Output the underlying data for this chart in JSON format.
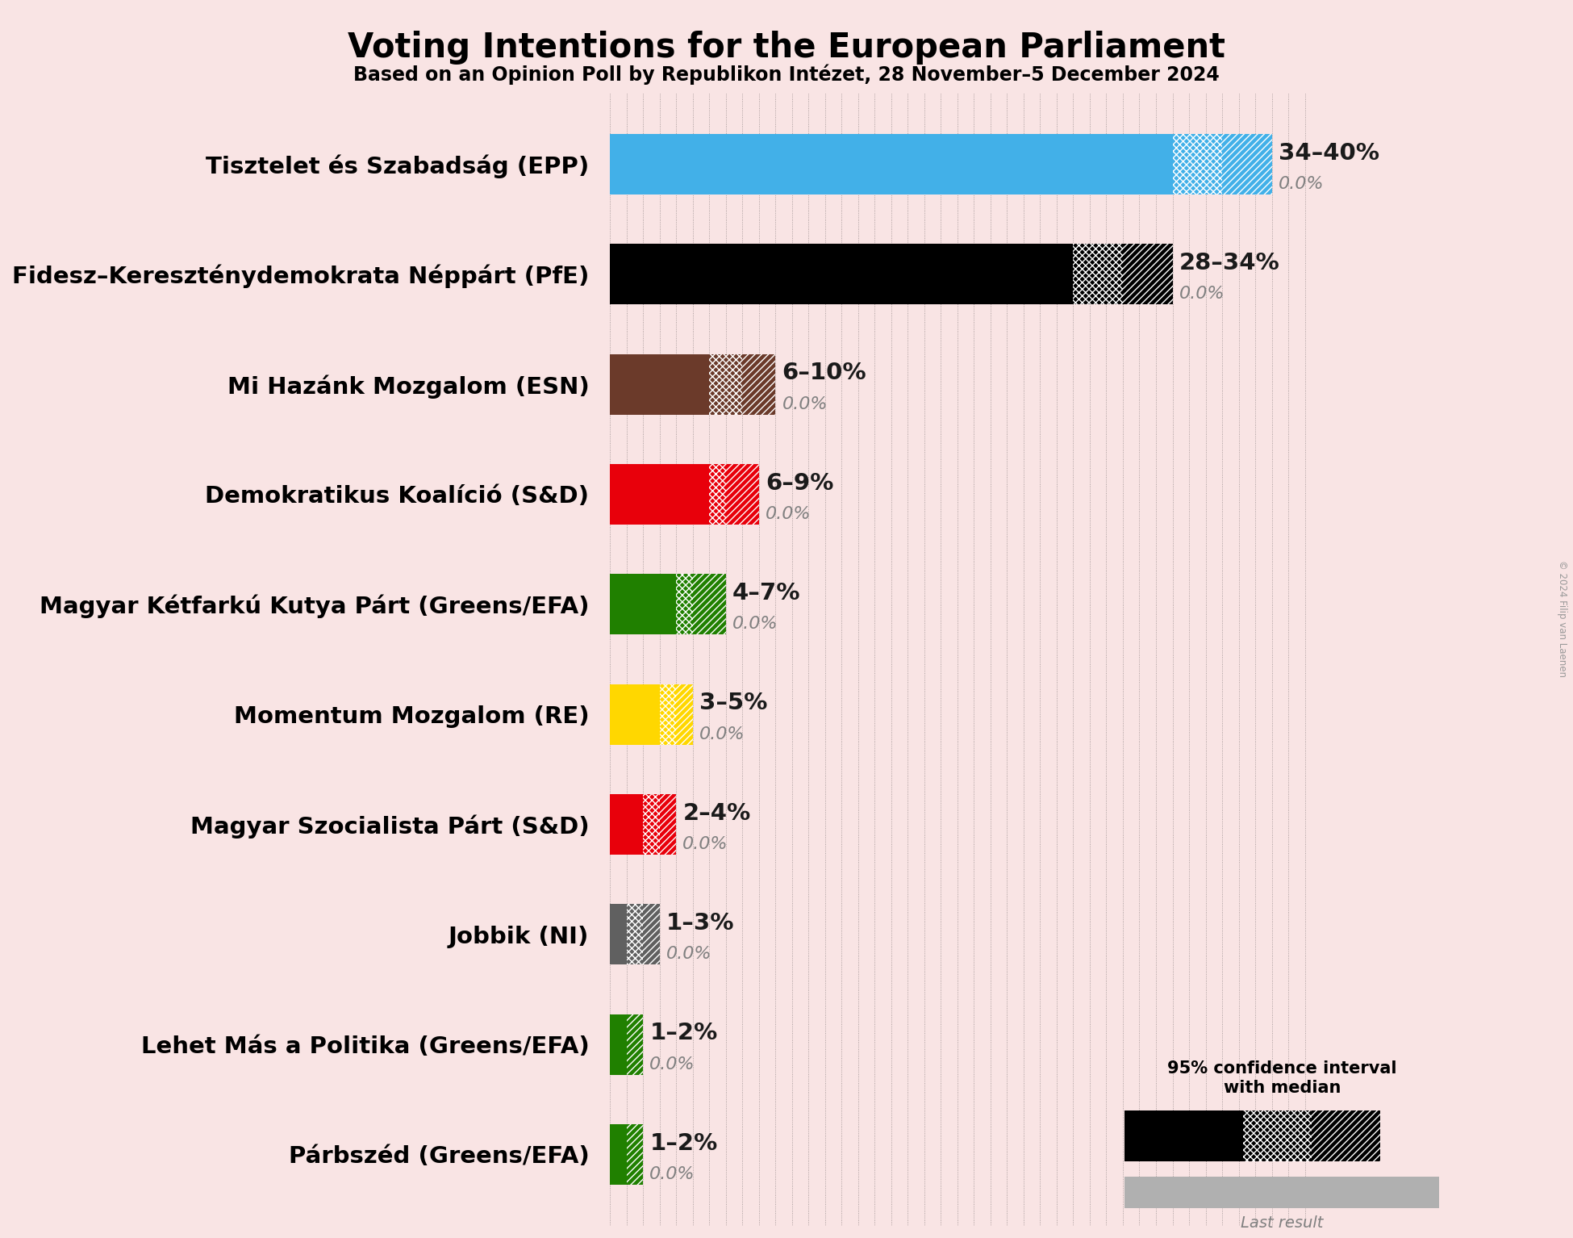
{
  "title": "Voting Intentions for the European Parliament",
  "subtitle": "Based on an Opinion Poll by Republikon Intézet, 28 November–5 December 2024",
  "copyright": "© 2024 Filip van Laenen",
  "background_color": "#f9e4e4",
  "parties": [
    {
      "name": "Tisztelet és Szabadság (EPP)",
      "color": "#42b0e8",
      "low": 34,
      "median": 37,
      "high": 40,
      "last": 0.0,
      "label": "34–40%"
    },
    {
      "name": "Fidesz–Kereszténydemokrata Néppárt (PfE)",
      "color": "#000000",
      "low": 28,
      "median": 31,
      "high": 34,
      "last": 0.0,
      "label": "28–34%"
    },
    {
      "name": "Mi Hazánk Mozgalom (ESN)",
      "color": "#6b3a2a",
      "low": 6,
      "median": 8,
      "high": 10,
      "last": 0.0,
      "label": "6–10%"
    },
    {
      "name": "Demokratikus Koalíció (S&D)",
      "color": "#e8000b",
      "low": 6,
      "median": 7,
      "high": 9,
      "last": 0.0,
      "label": "6–9%"
    },
    {
      "name": "Magyar Kétfarkú Kutya Párt (Greens/EFA)",
      "color": "#208000",
      "low": 4,
      "median": 5,
      "high": 7,
      "last": 0.0,
      "label": "4–7%"
    },
    {
      "name": "Momentum Mozgalom (RE)",
      "color": "#FFD700",
      "low": 3,
      "median": 4,
      "high": 5,
      "last": 0.0,
      "label": "3–5%"
    },
    {
      "name": "Magyar Szocialista Párt (S&D)",
      "color": "#e8000b",
      "low": 2,
      "median": 3,
      "high": 4,
      "last": 0.0,
      "label": "2–4%"
    },
    {
      "name": "Jobbik (NI)",
      "color": "#606060",
      "low": 1,
      "median": 2,
      "high": 3,
      "last": 0.0,
      "label": "1–3%"
    },
    {
      "name": "Lehet Más a Politika (Greens/EFA)",
      "color": "#208000",
      "low": 1,
      "median": 1,
      "high": 2,
      "last": 0.0,
      "label": "1–2%"
    },
    {
      "name": "Párbszéd (Greens/EFA)",
      "color": "#208000",
      "low": 1,
      "median": 1,
      "high": 2,
      "last": 0.0,
      "label": "1–2%"
    }
  ],
  "xlim_max": 43,
  "bar_height": 0.55,
  "title_fontsize": 30,
  "subtitle_fontsize": 17,
  "label_fontsize": 21,
  "annot_fontsize": 21,
  "last_fontsize": 16,
  "annot_color": "#1a1a1a",
  "last_color": "#808080"
}
